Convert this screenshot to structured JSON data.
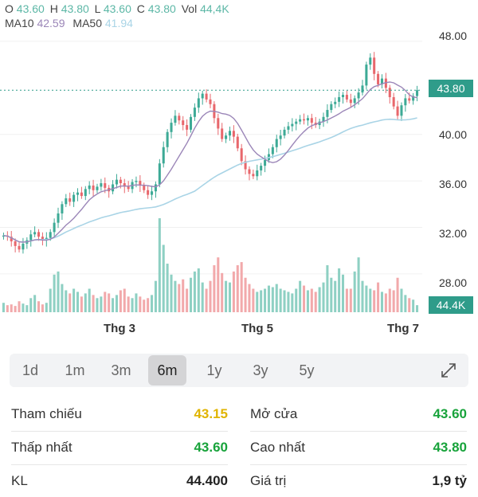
{
  "header": {
    "o_label": "O",
    "o_value": "43.60",
    "h_label": "H",
    "h_value": "43.80",
    "l_label": "L",
    "l_value": "43.60",
    "c_label": "C",
    "c_value": "43.80",
    "vol_label": "Vol",
    "vol_value": "44,4K",
    "ma10_label": "MA10",
    "ma10_value": "42.59",
    "ma50_label": "MA50",
    "ma50_value": "41.94"
  },
  "colors": {
    "up": "#3daa96",
    "down": "#e8676c",
    "vol_up": "#8ed0c3",
    "vol_down": "#f2a9ab",
    "ma10": "#9b86b8",
    "ma50": "#a9d4e6",
    "tag": "#2f9c8a",
    "ref": "#e0b400",
    "green": "#18a33b"
  },
  "price_tag": "43.80",
  "volume_tag": "44.4K",
  "chart_data": {
    "type": "candlestick",
    "y_ticks": [
      "48.00",
      "40.00",
      "36.00",
      "32.00",
      "28.00"
    ],
    "ylim": [
      24.5,
      49.5
    ],
    "x_tick_labels": [
      "Thg 3",
      "Thg 5",
      "Thg 7"
    ],
    "current_price": 43.8,
    "closes": [
      31.3,
      31.2,
      30.8,
      30.4,
      30.1,
      30.6,
      30.9,
      31.4,
      31.6,
      31.2,
      30.9,
      31.1,
      31.6,
      32.4,
      33.2,
      34.0,
      34.5,
      34.2,
      34.8,
      35.0,
      34.7,
      35.3,
      35.6,
      35.2,
      35.5,
      35.8,
      35.4,
      35.1,
      35.7,
      36.1,
      35.8,
      35.5,
      35.3,
      35.9,
      36.0,
      35.6,
      35.2,
      34.8,
      35.1,
      35.7,
      37.5,
      38.9,
      40.2,
      41.0,
      41.6,
      41.2,
      40.8,
      40.4,
      41.5,
      42.3,
      43.1,
      43.5,
      43.0,
      42.6,
      41.4,
      40.5,
      39.6,
      39.9,
      40.3,
      39.8,
      38.8,
      37.7,
      37.0,
      36.6,
      36.4,
      36.9,
      37.3,
      37.8,
      38.3,
      38.9,
      39.6,
      39.9,
      40.4,
      40.7,
      40.9,
      41.1,
      41.3,
      41.2,
      41.4,
      41.0,
      40.8,
      41.1,
      41.5,
      42.1,
      42.6,
      42.8,
      43.2,
      43.4,
      43.0,
      42.7,
      43.1,
      43.6,
      44.2,
      46.0,
      46.6,
      45.2,
      44.3,
      44.8,
      44.0,
      43.2,
      42.4,
      41.6,
      42.5,
      43.1,
      42.9,
      43.3,
      43.8
    ],
    "volumes": [
      12,
      9,
      10,
      8,
      14,
      11,
      9,
      18,
      22,
      14,
      10,
      12,
      30,
      48,
      52,
      36,
      28,
      24,
      30,
      26,
      20,
      24,
      30,
      22,
      18,
      20,
      26,
      24,
      18,
      22,
      28,
      30,
      20,
      18,
      24,
      20,
      16,
      18,
      22,
      40,
      120,
      86,
      62,
      48,
      40,
      36,
      42,
      30,
      44,
      52,
      56,
      38,
      30,
      40,
      60,
      70,
      50,
      40,
      38,
      52,
      60,
      64,
      44,
      36,
      30,
      26,
      28,
      30,
      34,
      32,
      36,
      30,
      28,
      26,
      24,
      30,
      40,
      34,
      28,
      30,
      26,
      32,
      38,
      60,
      44,
      40,
      56,
      48,
      30,
      30,
      52,
      70,
      40,
      34,
      30,
      28,
      38,
      26,
      24,
      30,
      28,
      44,
      30,
      22,
      18,
      16,
      9
    ]
  },
  "ranges": [
    "1d",
    "1m",
    "3m",
    "6m",
    "1y",
    "3y",
    "5y"
  ],
  "active_range": "6m",
  "stats": [
    {
      "label": "Tham chiếu",
      "value": "43.15",
      "kind": "ref"
    },
    {
      "label": "Mở cửa",
      "value": "43.60",
      "kind": "up"
    },
    {
      "label": "Thấp nhất",
      "value": "43.60",
      "kind": "up"
    },
    {
      "label": "Cao nhất",
      "value": "43.80",
      "kind": "up"
    },
    {
      "label": "KL",
      "value": "44.400",
      "kind": "plain"
    },
    {
      "label": "Giá trị",
      "value": "1,9 tỷ",
      "kind": "plain"
    }
  ]
}
